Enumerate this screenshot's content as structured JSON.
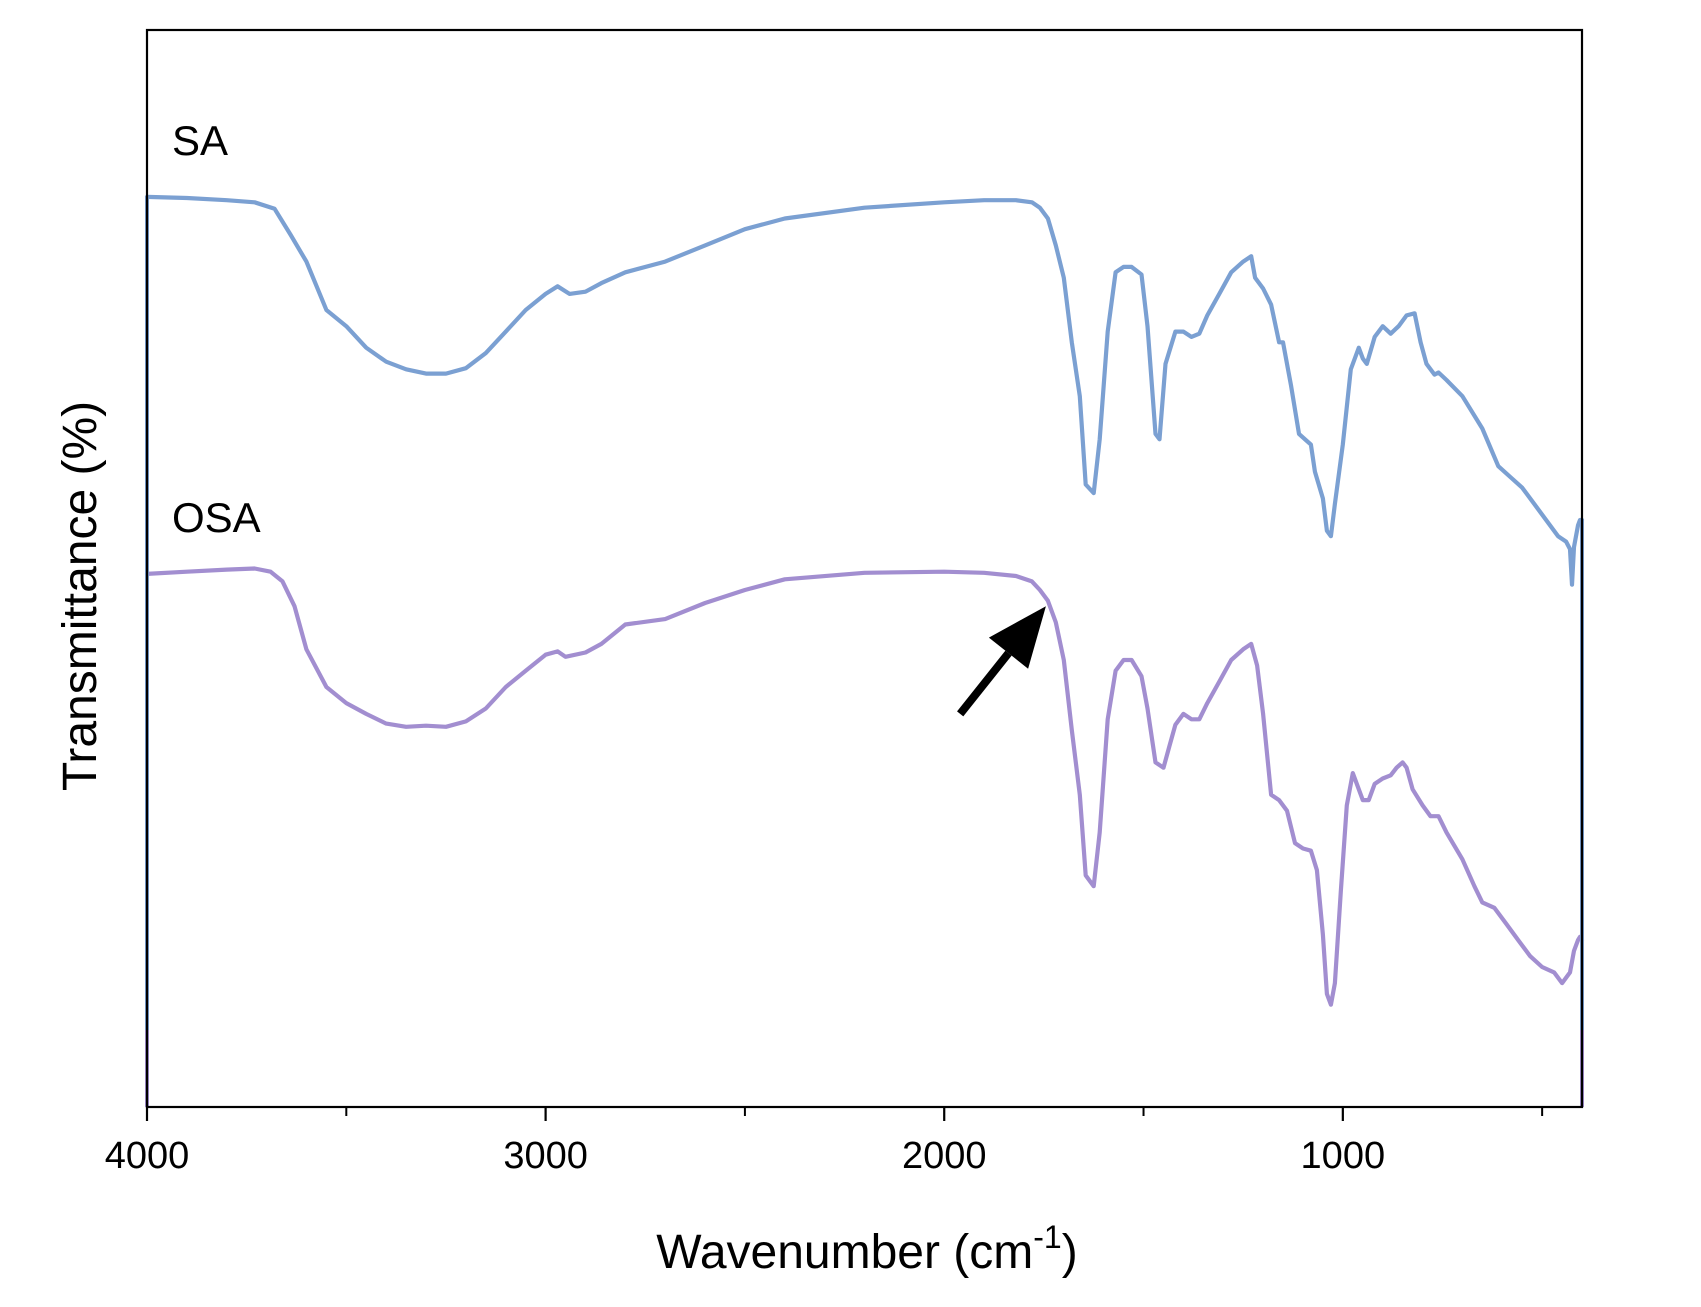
{
  "chart_data": {
    "type": "line",
    "xlabel": "Wavenumber (cm",
    "xlabel_superscript": "-1",
    "xlabel_close": ")",
    "ylabel": "Transmittance (%)",
    "xlim": [
      4000,
      400
    ],
    "x_reversed": true,
    "ylim": [
      0,
      100
    ],
    "y_ticks_shown": false,
    "x_major_ticks": [
      4000,
      3000,
      2000,
      1000
    ],
    "x_minor_ticks": [
      3500,
      2500,
      1500,
      500
    ],
    "x_tick_labels": [
      "4000",
      "3000",
      "2000",
      "1000"
    ],
    "grid": false,
    "legend": "inline labels",
    "series": [
      {
        "name": "SA",
        "color": "#7ba0d2",
        "points": [
          [
            4000,
            84.5
          ],
          [
            3900,
            84.4
          ],
          [
            3800,
            84.2
          ],
          [
            3730,
            84.0
          ],
          [
            3680,
            83.4
          ],
          [
            3640,
            81.0
          ],
          [
            3600,
            78.5
          ],
          [
            3550,
            74.0
          ],
          [
            3500,
            72.5
          ],
          [
            3450,
            70.5
          ],
          [
            3400,
            69.2
          ],
          [
            3350,
            68.5
          ],
          [
            3300,
            68.1
          ],
          [
            3250,
            68.1
          ],
          [
            3200,
            68.6
          ],
          [
            3150,
            70.0
          ],
          [
            3100,
            72.0
          ],
          [
            3050,
            74.0
          ],
          [
            3000,
            75.5
          ],
          [
            2970,
            76.2
          ],
          [
            2940,
            75.5
          ],
          [
            2900,
            75.7
          ],
          [
            2860,
            76.5
          ],
          [
            2800,
            77.5
          ],
          [
            2700,
            78.5
          ],
          [
            2600,
            80.0
          ],
          [
            2500,
            81.5
          ],
          [
            2400,
            82.5
          ],
          [
            2200,
            83.5
          ],
          [
            2000,
            84.0
          ],
          [
            1900,
            84.2
          ],
          [
            1820,
            84.2
          ],
          [
            1780,
            84.0
          ],
          [
            1760,
            83.5
          ],
          [
            1740,
            82.5
          ],
          [
            1720,
            80.0
          ],
          [
            1700,
            77.0
          ],
          [
            1680,
            71.0
          ],
          [
            1660,
            66.0
          ],
          [
            1645,
            57.8
          ],
          [
            1625,
            57.0
          ],
          [
            1610,
            62.0
          ],
          [
            1590,
            72.0
          ],
          [
            1570,
            77.5
          ],
          [
            1550,
            78.0
          ],
          [
            1530,
            78.0
          ],
          [
            1505,
            77.3
          ],
          [
            1490,
            72.5
          ],
          [
            1470,
            62.5
          ],
          [
            1460,
            62.0
          ],
          [
            1445,
            69.0
          ],
          [
            1420,
            72.0
          ],
          [
            1400,
            72.0
          ],
          [
            1380,
            71.5
          ],
          [
            1360,
            71.8
          ],
          [
            1340,
            73.5
          ],
          [
            1310,
            75.5
          ],
          [
            1280,
            77.5
          ],
          [
            1250,
            78.5
          ],
          [
            1230,
            79.0
          ],
          [
            1220,
            77.0
          ],
          [
            1200,
            76.0
          ],
          [
            1180,
            74.5
          ],
          [
            1160,
            71.0
          ],
          [
            1150,
            71.0
          ],
          [
            1130,
            67.0
          ],
          [
            1110,
            62.5
          ],
          [
            1095,
            62.0
          ],
          [
            1080,
            61.5
          ],
          [
            1070,
            59.0
          ],
          [
            1050,
            56.5
          ],
          [
            1040,
            53.5
          ],
          [
            1030,
            53.0
          ],
          [
            1020,
            56.0
          ],
          [
            1000,
            61.5
          ],
          [
            980,
            68.5
          ],
          [
            960,
            70.5
          ],
          [
            950,
            69.5
          ],
          [
            940,
            69.0
          ],
          [
            920,
            71.5
          ],
          [
            900,
            72.5
          ],
          [
            880,
            71.8
          ],
          [
            860,
            72.5
          ],
          [
            840,
            73.5
          ],
          [
            820,
            73.7
          ],
          [
            805,
            71.0
          ],
          [
            790,
            69.0
          ],
          [
            770,
            68.0
          ],
          [
            760,
            68.2
          ],
          [
            740,
            67.5
          ],
          [
            700,
            66.0
          ],
          [
            650,
            63.0
          ],
          [
            610,
            59.5
          ],
          [
            580,
            58.5
          ],
          [
            550,
            57.5
          ],
          [
            520,
            56.0
          ],
          [
            490,
            54.5
          ],
          [
            460,
            53.0
          ],
          [
            440,
            52.5
          ],
          [
            430,
            51.8
          ],
          [
            425,
            48.5
          ],
          [
            420,
            52.0
          ],
          [
            410,
            54.0
          ],
          [
            405,
            54.5
          ],
          [
            400,
            54.5
          ]
        ]
      },
      {
        "name": "OSA",
        "color": "#a28ed0",
        "points": [
          [
            4000,
            49.5
          ],
          [
            3900,
            49.7
          ],
          [
            3800,
            49.9
          ],
          [
            3730,
            50.0
          ],
          [
            3690,
            49.7
          ],
          [
            3660,
            48.8
          ],
          [
            3630,
            46.5
          ],
          [
            3600,
            42.5
          ],
          [
            3550,
            39.0
          ],
          [
            3500,
            37.5
          ],
          [
            3450,
            36.5
          ],
          [
            3400,
            35.6
          ],
          [
            3350,
            35.3
          ],
          [
            3300,
            35.4
          ],
          [
            3250,
            35.3
          ],
          [
            3200,
            35.8
          ],
          [
            3150,
            37.0
          ],
          [
            3100,
            39.0
          ],
          [
            3050,
            40.5
          ],
          [
            3000,
            42.0
          ],
          [
            2970,
            42.3
          ],
          [
            2950,
            41.8
          ],
          [
            2900,
            42.2
          ],
          [
            2860,
            43.0
          ],
          [
            2800,
            44.8
          ],
          [
            2700,
            45.3
          ],
          [
            2600,
            46.8
          ],
          [
            2500,
            48.0
          ],
          [
            2400,
            49.0
          ],
          [
            2200,
            49.6
          ],
          [
            2000,
            49.7
          ],
          [
            1900,
            49.6
          ],
          [
            1820,
            49.3
          ],
          [
            1780,
            48.8
          ],
          [
            1760,
            48.0
          ],
          [
            1740,
            47.0
          ],
          [
            1720,
            45.0
          ],
          [
            1700,
            41.5
          ],
          [
            1680,
            35.0
          ],
          [
            1660,
            29.0
          ],
          [
            1645,
            21.5
          ],
          [
            1625,
            20.5
          ],
          [
            1610,
            25.5
          ],
          [
            1590,
            36.0
          ],
          [
            1570,
            40.5
          ],
          [
            1550,
            41.5
          ],
          [
            1530,
            41.5
          ],
          [
            1505,
            40.0
          ],
          [
            1490,
            37.0
          ],
          [
            1470,
            32.0
          ],
          [
            1450,
            31.5
          ],
          [
            1435,
            33.5
          ],
          [
            1420,
            35.5
          ],
          [
            1400,
            36.5
          ],
          [
            1380,
            36.0
          ],
          [
            1360,
            36.0
          ],
          [
            1340,
            37.5
          ],
          [
            1310,
            39.5
          ],
          [
            1280,
            41.5
          ],
          [
            1250,
            42.5
          ],
          [
            1230,
            43.0
          ],
          [
            1215,
            41.0
          ],
          [
            1200,
            36.5
          ],
          [
            1180,
            29.0
          ],
          [
            1160,
            28.5
          ],
          [
            1140,
            27.5
          ],
          [
            1120,
            24.5
          ],
          [
            1100,
            24.0
          ],
          [
            1080,
            23.8
          ],
          [
            1065,
            22.0
          ],
          [
            1050,
            16.0
          ],
          [
            1040,
            10.5
          ],
          [
            1030,
            9.5
          ],
          [
            1020,
            11.5
          ],
          [
            1005,
            20.0
          ],
          [
            990,
            28.0
          ],
          [
            975,
            31.0
          ],
          [
            965,
            30.0
          ],
          [
            950,
            28.5
          ],
          [
            935,
            28.5
          ],
          [
            920,
            30.0
          ],
          [
            900,
            30.5
          ],
          [
            880,
            30.8
          ],
          [
            865,
            31.5
          ],
          [
            850,
            32.0
          ],
          [
            840,
            31.5
          ],
          [
            825,
            29.5
          ],
          [
            800,
            28.0
          ],
          [
            780,
            27.0
          ],
          [
            760,
            27.0
          ],
          [
            740,
            25.5
          ],
          [
            700,
            23.0
          ],
          [
            670,
            20.5
          ],
          [
            650,
            19.0
          ],
          [
            620,
            18.5
          ],
          [
            590,
            17.0
          ],
          [
            560,
            15.5
          ],
          [
            530,
            14.0
          ],
          [
            500,
            13.0
          ],
          [
            470,
            12.5
          ],
          [
            450,
            11.5
          ],
          [
            430,
            12.5
          ],
          [
            420,
            14.5
          ],
          [
            410,
            15.5
          ],
          [
            405,
            15.8
          ],
          [
            400,
            15.5
          ]
        ]
      }
    ],
    "annotations": [
      {
        "type": "arrow",
        "from": [
          1960,
          36.5
        ],
        "to": [
          1745,
          46.5
        ],
        "color": "#000000"
      }
    ]
  }
}
